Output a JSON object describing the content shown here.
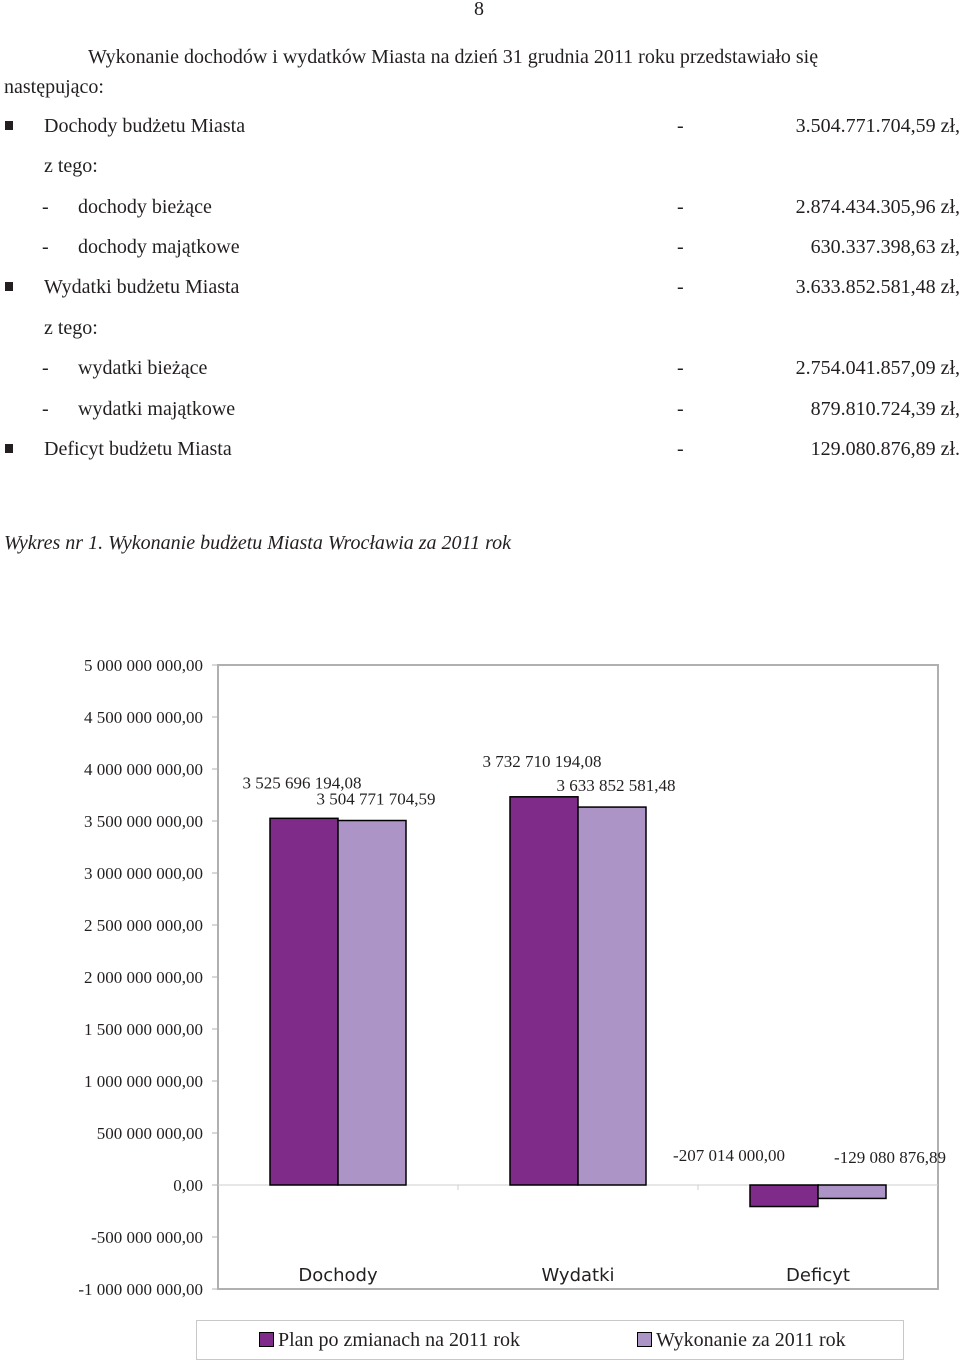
{
  "page_number": "8",
  "intro": {
    "line1": "Wykonanie dochodów i wydatków Miasta na dzień 31 grudnia 2011 roku przedstawiało się",
    "line2": "następująco:"
  },
  "items": [
    {
      "marker": "bullet",
      "label": "Dochody budżetu Miasta",
      "sep": "-",
      "amount": "3.504.771.704,59 zł,"
    },
    {
      "marker": "none",
      "label": "z tego:",
      "sep": "",
      "amount": ""
    },
    {
      "marker": "dash",
      "label": "dochody bieżące",
      "sep": "-",
      "amount": "2.874.434.305,96 zł,"
    },
    {
      "marker": "dash",
      "label": "dochody majątkowe",
      "sep": "-",
      "amount": "630.337.398,63 zł,"
    },
    {
      "marker": "bullet",
      "label": "Wydatki budżetu Miasta",
      "sep": "-",
      "amount": "3.633.852.581,48 zł,"
    },
    {
      "marker": "none",
      "label": "z tego:",
      "sep": "",
      "amount": ""
    },
    {
      "marker": "dash",
      "label": "wydatki bieżące",
      "sep": "-",
      "amount": "2.754.041.857,09 zł,"
    },
    {
      "marker": "dash",
      "label": "wydatki majątkowe",
      "sep": "-",
      "amount": "879.810.724,39 zł,"
    },
    {
      "marker": "bullet",
      "label": "Deficyt budżetu Miasta",
      "sep": "-",
      "amount": "129.080.876,89 zł."
    }
  ],
  "caption": "Wykres nr 1. Wykonanie budżetu Miasta Wrocławia za 2011 rok",
  "chart_data": {
    "type": "bar",
    "categories": [
      "Dochody",
      "Wydatki",
      "Deficyt"
    ],
    "series": [
      {
        "name": "Plan po zmianach na 2011 rok",
        "color": "#7e2b8a",
        "values": [
          3525696194.08,
          3732710194.08,
          -207014000.0
        ],
        "labels": [
          "3 525 696 194,08",
          "3 732 710 194,08",
          "-207 014 000,00"
        ]
      },
      {
        "name": "Wykonanie za 2011 rok",
        "color": "#ad94c7",
        "values": [
          3504771704.59,
          3633852581.48,
          -129080876.89
        ],
        "labels": [
          "3 504 771 704,59",
          "3 633 852 581,48",
          "-129 080 876,89"
        ]
      }
    ],
    "ylim": [
      -1000000000,
      5000000000
    ],
    "ytick_values": [
      5000000000,
      4500000000,
      4000000000,
      3500000000,
      3000000000,
      2500000000,
      2000000000,
      1500000000,
      1000000000,
      500000000,
      0,
      -500000000,
      -1000000000
    ],
    "ytick_labels": [
      "5 000 000 000,00",
      "4 500 000 000,00",
      "4 000 000 000,00",
      "3 500 000 000,00",
      "3 000 000 000,00",
      "2 500 000 000,00",
      "2 000 000 000,00",
      "1 500 000 000,00",
      "1 000 000 000,00",
      "500 000 000,00",
      "0,00",
      "-500 000 000,00",
      "-1 000 000 000,00"
    ],
    "grid": false,
    "legend_position": "bottom"
  }
}
